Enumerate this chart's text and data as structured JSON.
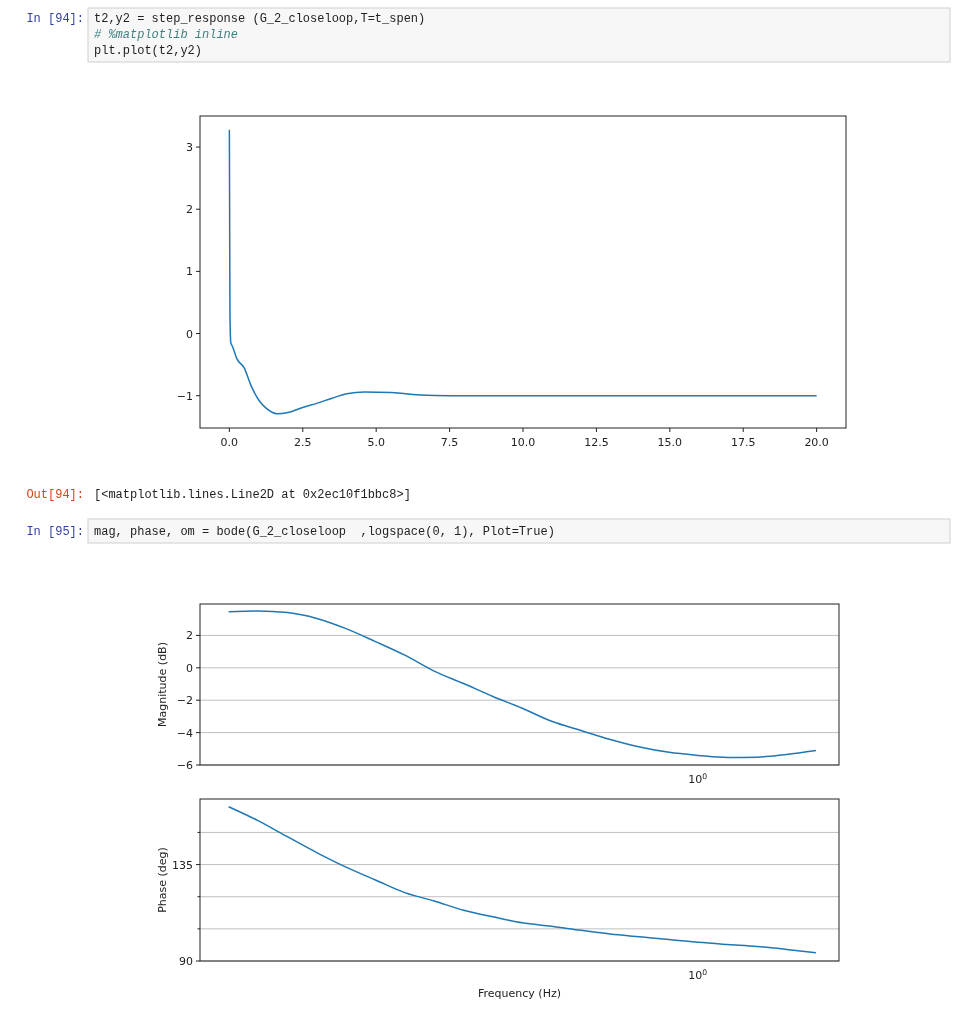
{
  "chart_data": [
    {
      "type": "line",
      "annotations": [
        "In [94]:",
        "t2,y2 = step_response (G_2_closeloop,T=t_spen)",
        "# %matplotlib inline",
        "plt.plot(t2,y2)"
      ],
      "xlim": [
        -1.0,
        21.0
      ],
      "xticks": [
        {
          "value": 0,
          "label": "0.0"
        },
        {
          "value": 2.5,
          "label": "2.5"
        },
        {
          "value": 5,
          "label": "5.0"
        },
        {
          "value": 7.5,
          "label": "7.5"
        },
        {
          "value": 10,
          "label": "10.0"
        },
        {
          "value": 12.5,
          "label": "12.5"
        },
        {
          "value": 15,
          "label": "15.0"
        },
        {
          "value": 17.5,
          "label": "17.5"
        },
        {
          "value": 20,
          "label": "20.0"
        }
      ],
      "ylim": [
        -1.52,
        3.5
      ],
      "yticks": [
        {
          "value": -1,
          "label": "−1"
        },
        0,
        1,
        2,
        3
      ],
      "grid": false,
      "series": [
        {
          "color": "#1f77b4",
          "x": [
            0,
            0.02,
            0.05,
            0.1,
            0.25,
            0.5,
            0.75,
            1.0,
            1.25,
            1.63,
            2.0,
            2.5,
            3.0,
            3.5,
            4.0,
            4.6,
            5.5,
            6.0,
            6.5,
            7.5,
            10,
            15,
            20
          ],
          "values": [
            3.28,
            0.3,
            -0.15,
            -0.2,
            -0.4,
            -0.55,
            -0.85,
            -1.07,
            -1.2,
            -1.29,
            -1.27,
            -1.19,
            -1.12,
            -1.04,
            -0.97,
            -0.94,
            -0.95,
            -0.97,
            -0.99,
            -1.0,
            -1.0,
            -1.0,
            -1.0
          ]
        }
      ]
    },
    {
      "type": "line",
      "annotations": [
        "Out[94]:",
        "[<matplotlib.lines.Line2D at 0x2ec10f1bbc8>]",
        "In [95]:",
        "mag, phase, om = bode(G_2_closeloop  ,logspace(0, 1), Plot=True)",
        "10$^{0}$"
      ],
      "ylabel": "Magnitude (dB)",
      "grid": "y",
      "categories": [
        null,
        null,
        null,
        null,
        null,
        null,
        null,
        null,
        null,
        null,
        null,
        null,
        null,
        null,
        null,
        null,
        null,
        null,
        null,
        null,
        null
      ],
      "ylim": [
        -6,
        3.94
      ],
      "yticks": [
        {
          "value": -6,
          "label": "−6"
        },
        {
          "value": -4,
          "label": "−4"
        },
        {
          "value": -2,
          "label": "−2"
        },
        0,
        2
      ],
      "series": [
        {
          "color": "#1f77b4",
          "values": [
            3.46,
            3.51,
            3.41,
            3.05,
            2.42,
            1.62,
            0.78,
            -0.2,
            -0.97,
            -1.77,
            -2.5,
            -3.3,
            -3.87,
            -4.43,
            -4.89,
            -5.22,
            -5.41,
            -5.54,
            -5.52,
            -5.35,
            -5.1
          ]
        }
      ]
    },
    {
      "type": "line",
      "annotations": [
        "10$^{0}$"
      ],
      "xlabel": "Frequency (Hz)",
      "ylabel": "Phase (deg)",
      "grid": "y",
      "categories": [
        null,
        null,
        null,
        null,
        null,
        null,
        null,
        null,
        null,
        null,
        null,
        null,
        null,
        null,
        null,
        null,
        null,
        null,
        null,
        null,
        null
      ],
      "ylim": [
        90,
        165.6
      ],
      "yticks": [
        90,
        {
          "value": 105,
          "label": null
        },
        {
          "value": 120,
          "label": null
        },
        135,
        {
          "value": 150,
          "label": null
        }
      ],
      "series": [
        {
          "color": "#1f77b4",
          "values": [
            162.0,
            155.5,
            148.0,
            140.6,
            133.8,
            127.8,
            121.9,
            118.0,
            113.7,
            110.6,
            107.8,
            106.2,
            104.3,
            102.6,
            101.3,
            100.0,
            98.7,
            97.7,
            96.8,
            95.4,
            93.8
          ]
        }
      ]
    }
  ]
}
